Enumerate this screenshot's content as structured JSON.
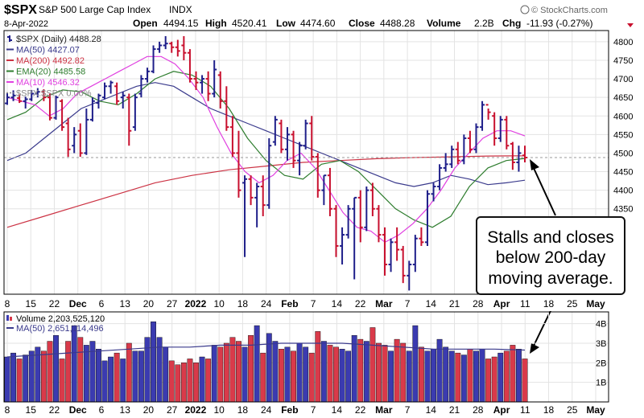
{
  "header": {
    "symbol": "$SPX",
    "name": "S&P 500 Large Cap Index",
    "exchange": "INDX",
    "copyright": "© StockCharts.com",
    "date": "8-Apr-2022",
    "open_label": "Open",
    "open": "4494.15",
    "high_label": "High",
    "high": "4520.41",
    "low_label": "Low",
    "low": "4474.60",
    "close_label": "Close",
    "close": "4488.28",
    "volume_label": "Volume",
    "volume": "2.2B",
    "chg_label": "Chg",
    "chg": "-11.93 (-0.27%)"
  },
  "legend": [
    {
      "text": "$SPX (Daily) 4488.28",
      "color": "#222222",
      "marker": "bar"
    },
    {
      "text": "MA(50) 4427.07",
      "color": "#3a3a8c",
      "marker": "line"
    },
    {
      "text": "MA(200) 4492.82",
      "color": "#cc3344",
      "marker": "line"
    },
    {
      "text": "EMA(20) 4485.58",
      "color": "#2e7d2e",
      "marker": "line"
    },
    {
      "text": "MA(10) 4546.32",
      "color": "#e040e0",
      "marker": "line"
    },
    {
      "text": "$SPX:$SPX 0.00%",
      "color": "#888888",
      "marker": "dash"
    }
  ],
  "volume_legend": [
    {
      "text": "Volume 2,203,525,120",
      "color": "#000000",
      "marker": "vol"
    },
    {
      "text": "MA(50) 2,651,114,496",
      "color": "#3a3a8c",
      "marker": "line"
    }
  ],
  "annotation": {
    "lines": [
      "Stalls and closes",
      "below 200-day",
      "moving average."
    ]
  },
  "colors": {
    "up": "#1f1f8a",
    "down": "#c8102e",
    "vol_up": "#3b3bb0",
    "vol_down": "#d93a4a",
    "ma50": "#3a3a8c",
    "ma200": "#cc3344",
    "ema20": "#2e7d2e",
    "ma10": "#e040e0",
    "grid": "#e3e3e3"
  },
  "chart_data": [
    {
      "type": "ohlc",
      "title": "$SPX S&P 500 Large Cap Index",
      "y_ticks": [
        4350,
        4400,
        4450,
        4500,
        4550,
        4600,
        4650,
        4700,
        4750,
        4800
      ],
      "ylim": [
        4120,
        4830
      ],
      "x_ticks": [
        "8",
        "15",
        "22",
        "Dec",
        "6",
        "13",
        "20",
        "27",
        "2022",
        "10",
        "18",
        "24",
        "Feb",
        "7",
        "14",
        "22",
        "Mar",
        "7",
        "14",
        "21",
        "28",
        "Apr",
        "11",
        "18",
        "25",
        "May"
      ],
      "bars": [
        [
          4634,
          4662,
          4630,
          4650
        ],
        [
          4650,
          4669,
          4640,
          4655
        ],
        [
          4648,
          4658,
          4635,
          4640
        ],
        [
          4640,
          4652,
          4620,
          4645
        ],
        [
          4645,
          4670,
          4640,
          4660
        ],
        [
          4660,
          4675,
          4650,
          4665
        ],
        [
          4665,
          4672,
          4640,
          4650
        ],
        [
          4650,
          4660,
          4588,
          4595
        ],
        [
          4595,
          4655,
          4590,
          4650
        ],
        [
          4640,
          4645,
          4560,
          4570
        ],
        [
          4580,
          4595,
          4490,
          4510
        ],
        [
          4520,
          4570,
          4500,
          4550
        ],
        [
          4560,
          4580,
          4490,
          4500
        ],
        [
          4500,
          4620,
          4495,
          4590
        ],
        [
          4590,
          4650,
          4585,
          4640
        ],
        [
          4635,
          4660,
          4620,
          4655
        ],
        [
          4650,
          4690,
          4645,
          4680
        ],
        [
          4680,
          4695,
          4660,
          4690
        ],
        [
          4680,
          4690,
          4630,
          4640
        ],
        [
          4650,
          4665,
          4620,
          4655
        ],
        [
          4650,
          4660,
          4520,
          4560
        ],
        [
          4570,
          4660,
          4560,
          4650
        ],
        [
          4660,
          4710,
          4650,
          4700
        ],
        [
          4700,
          4730,
          4690,
          4720
        ],
        [
          4720,
          4790,
          4715,
          4780
        ],
        [
          4780,
          4800,
          4770,
          4790
        ],
        [
          4790,
          4815,
          4780,
          4795
        ],
        [
          4795,
          4800,
          4770,
          4785
        ],
        [
          4785,
          4805,
          4760,
          4775
        ],
        [
          4790,
          4815,
          4750,
          4770
        ],
        [
          4770,
          4780,
          4690,
          4700
        ],
        [
          4700,
          4720,
          4670,
          4690
        ],
        [
          4690,
          4710,
          4660,
          4700
        ],
        [
          4700,
          4720,
          4640,
          4660
        ],
        [
          4660,
          4750,
          4650,
          4725
        ],
        [
          4710,
          4720,
          4620,
          4640
        ],
        [
          4640,
          4680,
          4560,
          4570
        ],
        [
          4570,
          4600,
          4490,
          4500
        ],
        [
          4500,
          4560,
          4380,
          4400
        ],
        [
          4420,
          4440,
          4220,
          4430
        ],
        [
          4430,
          4440,
          4360,
          4380
        ],
        [
          4380,
          4420,
          4300,
          4410
        ],
        [
          4410,
          4440,
          4330,
          4360
        ],
        [
          4360,
          4540,
          4350,
          4520
        ],
        [
          4530,
          4600,
          4520,
          4590
        ],
        [
          4580,
          4590,
          4500,
          4510
        ],
        [
          4510,
          4570,
          4480,
          4550
        ],
        [
          4550,
          4560,
          4460,
          4480
        ],
        [
          4480,
          4530,
          4440,
          4520
        ],
        [
          4520,
          4590,
          4510,
          4580
        ],
        [
          4580,
          4600,
          4480,
          4490
        ],
        [
          4490,
          4500,
          4380,
          4400
        ],
        [
          4400,
          4440,
          4360,
          4440
        ],
        [
          4440,
          4460,
          4330,
          4350
        ],
        [
          4350,
          4360,
          4220,
          4250
        ],
        [
          4250,
          4300,
          4200,
          4280
        ],
        [
          4280,
          4360,
          4270,
          4350
        ],
        [
          4350,
          4380,
          4160,
          4380
        ],
        [
          4380,
          4400,
          4260,
          4300
        ],
        [
          4300,
          4410,
          4290,
          4400
        ],
        [
          4400,
          4420,
          4330,
          4350
        ],
        [
          4350,
          4360,
          4260,
          4280
        ],
        [
          4280,
          4300,
          4170,
          4200
        ],
        [
          4200,
          4270,
          4180,
          4260
        ],
        [
          4260,
          4300,
          4210,
          4240
        ],
        [
          4240,
          4250,
          4150,
          4170
        ],
        [
          4170,
          4210,
          4130,
          4200
        ],
        [
          4200,
          4280,
          4180,
          4270
        ],
        [
          4270,
          4300,
          4250,
          4260
        ],
        [
          4260,
          4400,
          4250,
          4390
        ],
        [
          4390,
          4420,
          4370,
          4410
        ],
        [
          4410,
          4470,
          4400,
          4460
        ],
        [
          4460,
          4500,
          4450,
          4470
        ],
        [
          4470,
          4520,
          4460,
          4510
        ],
        [
          4510,
          4530,
          4470,
          4480
        ],
        [
          4480,
          4550,
          4470,
          4540
        ],
        [
          4540,
          4560,
          4500,
          4510
        ],
        [
          4510,
          4580,
          4500,
          4570
        ],
        [
          4570,
          4640,
          4560,
          4630
        ],
        [
          4630,
          4620,
          4590,
          4610
        ],
        [
          4600,
          4610,
          4520,
          4540
        ],
        [
          4540,
          4600,
          4530,
          4590
        ],
        [
          4590,
          4600,
          4510,
          4520
        ],
        [
          4525,
          4530,
          4455,
          4475
        ],
        [
          4475,
          4520,
          4450,
          4500
        ],
        [
          4494,
          4520,
          4475,
          4488
        ]
      ],
      "ma50": [
        4480,
        4500,
        4540,
        4580,
        4620,
        4640,
        4660,
        4680,
        4690,
        4680,
        4650,
        4620,
        4600,
        4580,
        4560,
        4540,
        4520,
        4500,
        4480,
        4460,
        4440,
        4420,
        4410,
        4420,
        4440,
        4430,
        4415,
        4420,
        4427
      ],
      "ma200": [
        4300,
        4330,
        4360,
        4390,
        4420,
        4440,
        4455,
        4465,
        4475,
        4480,
        4485,
        4488,
        4490,
        4492,
        4492.82
      ],
      "ema20": [
        4590,
        4610,
        4650,
        4670,
        4665,
        4640,
        4630,
        4660,
        4700,
        4720,
        4710,
        4680,
        4620,
        4540,
        4480,
        4440,
        4430,
        4470,
        4480,
        4450,
        4400,
        4350,
        4320,
        4300,
        4330,
        4410,
        4460,
        4480,
        4485.58
      ],
      "ma10": [
        4650,
        4640,
        4630,
        4600,
        4620,
        4660,
        4680,
        4700,
        4720,
        4740,
        4760,
        4760,
        4740,
        4700,
        4650,
        4570,
        4500,
        4450,
        4420,
        4440,
        4480,
        4500,
        4460,
        4400,
        4340,
        4300,
        4290,
        4260,
        4280,
        4310,
        4350,
        4400,
        4460,
        4500,
        4540,
        4560,
        4560,
        4546.32
      ]
    },
    {
      "type": "bar",
      "title": "Volume",
      "y_ticks": [
        "1B",
        "2B",
        "3B",
        "4B"
      ],
      "ylim": [
        0,
        4.6
      ],
      "values": [
        2.3,
        2.5,
        2.2,
        2.4,
        2.6,
        2.8,
        2.6,
        3.1,
        3.4,
        2.2,
        3.1,
        3.9,
        3.3,
        2.9,
        3.1,
        2.7,
        2.1,
        2.3,
        2.5,
        2.2,
        3.0,
        2.6,
        2.6,
        3.3,
        4.1,
        3.3,
        2.8,
        2.1,
        1.9,
        2.0,
        2.2,
        2.0,
        2.3,
        2.2,
        2.9,
        2.8,
        3.0,
        3.3,
        3.1,
        2.8,
        3.4,
        3.9,
        2.5,
        3.5,
        3.1,
        2.7,
        2.8,
        2.6,
        3.0,
        2.8,
        2.5,
        3.6,
        3.1,
        2.9,
        2.8,
        2.7,
        2.6,
        3.4,
        3.2,
        3.1,
        3.8,
        3.0,
        2.9,
        2.6,
        3.2,
        3.0,
        2.6,
        3.9,
        2.8,
        2.6,
        2.7,
        3.2,
        2.8,
        2.6,
        2.5,
        2.4,
        2.7,
        2.6,
        2.7,
        2.2,
        2.3,
        2.5,
        2.6,
        2.9,
        2.7,
        2.2
      ],
      "ma50": [
        2.3,
        2.4,
        2.5,
        2.6,
        2.7,
        2.8,
        2.8,
        2.9,
        2.9,
        3.0,
        3.0,
        3.0,
        2.9,
        2.8,
        2.7,
        2.7,
        2.7,
        2.65
      ]
    }
  ]
}
